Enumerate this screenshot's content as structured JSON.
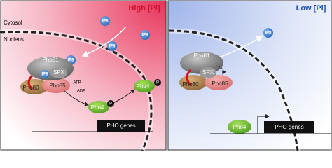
{
  "left": {
    "title": "High [Pi]",
    "cytosol": "Cytosol",
    "nucleus": "Nucleus",
    "labels": [
      "IP8",
      "IP8",
      "IP8",
      "IP8",
      "Pho81",
      "IP8",
      "SPX",
      "Pho80",
      "Pho85",
      "ATP",
      "ADP",
      "Pho4",
      "P",
      "Pho4",
      "P",
      "PHO genes"
    ]
  },
  "right": {
    "title": "Low [Pi]",
    "labels": [
      "IP8",
      "Pho81",
      "SPX",
      "Pho80",
      "Pho85",
      "Pho4",
      "PHO genes"
    ]
  }
}
